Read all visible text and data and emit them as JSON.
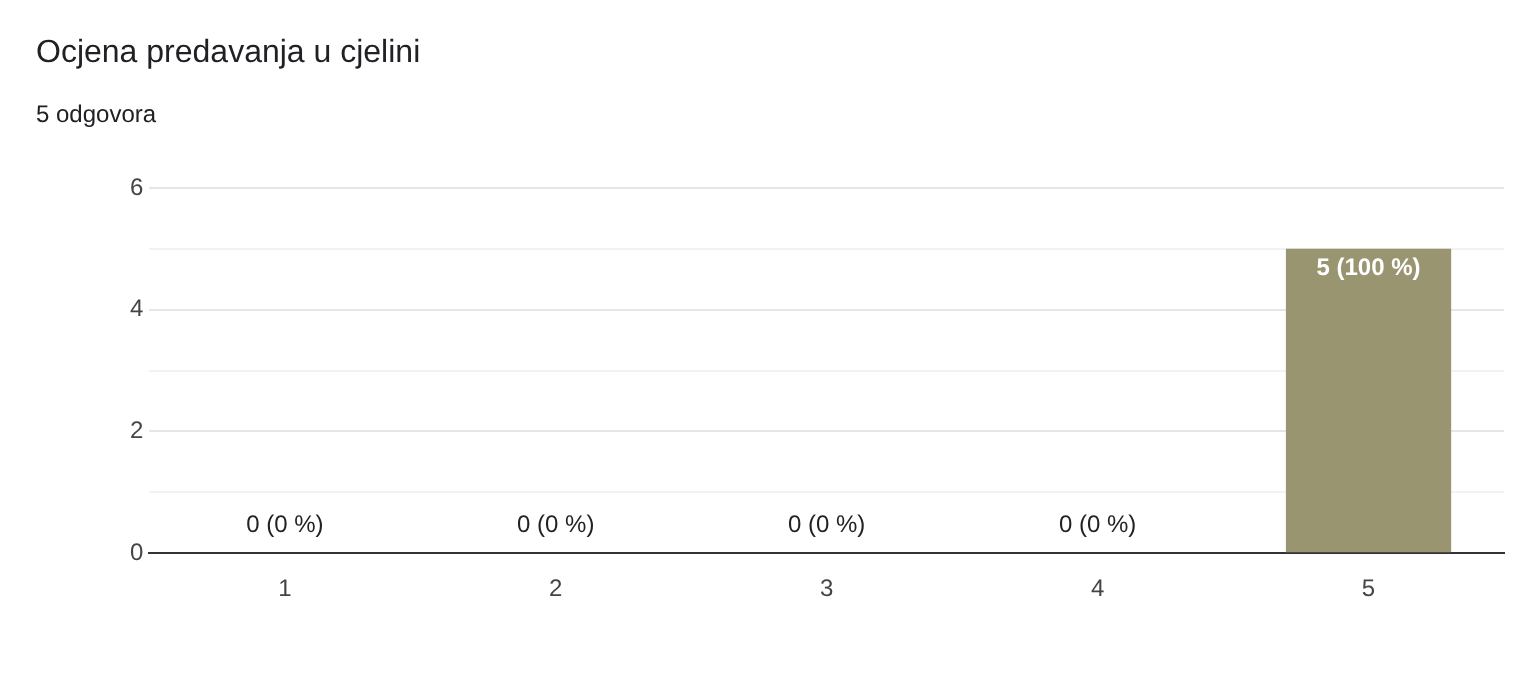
{
  "chart_data": {
    "type": "bar",
    "title": "Ocjena predavanja u cjelini",
    "subtitle": "5 odgovora",
    "categories": [
      "1",
      "2",
      "3",
      "4",
      "5"
    ],
    "values": [
      0,
      0,
      0,
      0,
      5
    ],
    "value_labels": [
      "0 (0 %)",
      "0 (0 %)",
      "0 (0 %)",
      "0 (0 %)",
      "5 (100 %)"
    ],
    "color": "#999570",
    "ylim": [
      0,
      6
    ],
    "yticks": [
      0,
      {
        "value": 1,
        "label": null
      },
      2,
      {
        "value": 3,
        "label": null
      },
      4,
      {
        "value": 5,
        "label": null
      },
      6
    ],
    "grid": "y",
    "legend": false
  }
}
